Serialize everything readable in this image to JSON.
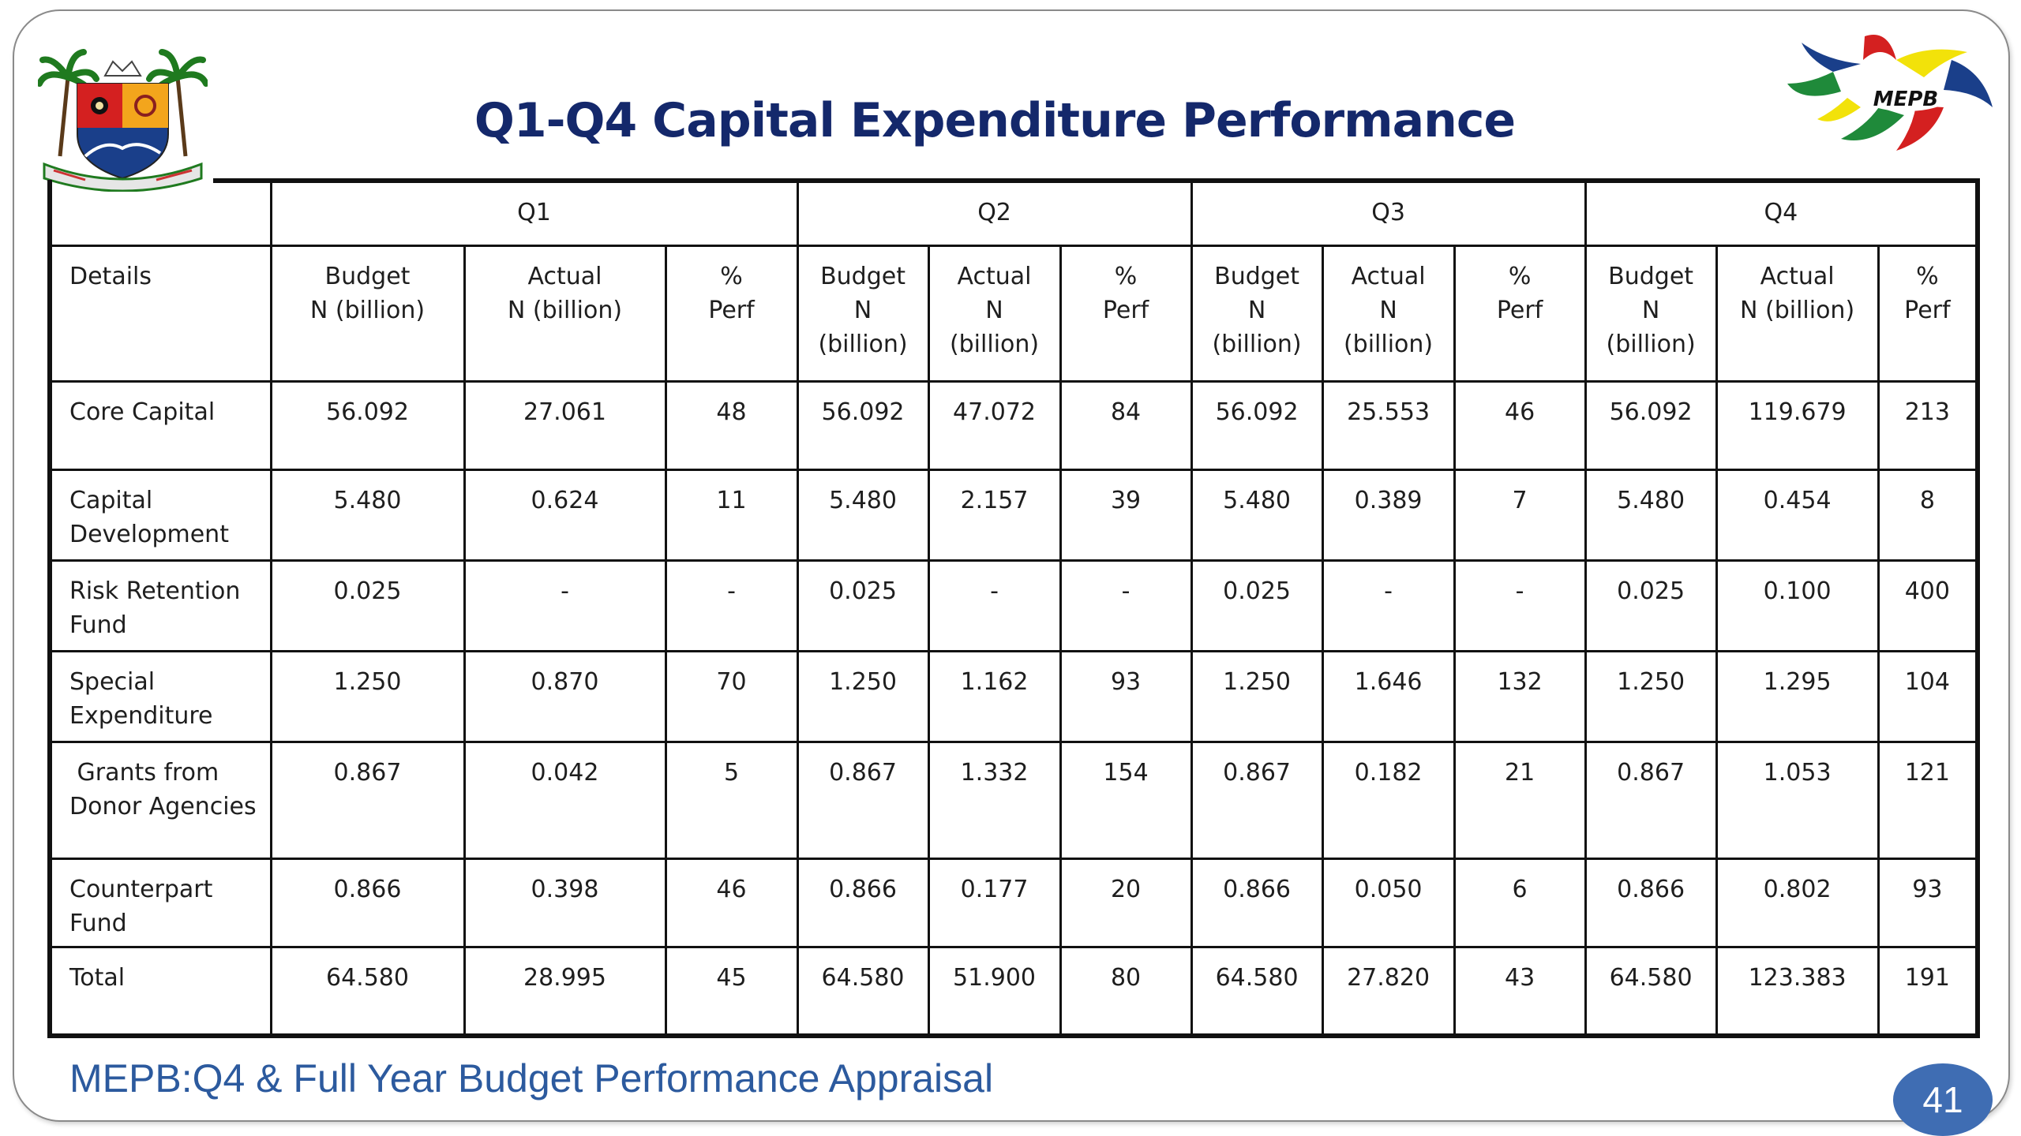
{
  "slide": {
    "title": "Q1-Q4 Capital Expenditure Performance",
    "footer": "MEPB:Q4 & Full Year  Budget Performance Appraisal",
    "page_number": "41",
    "logo_text": "MEPB",
    "accent_color": "#14286b",
    "footer_color": "#2c5a9e"
  },
  "table": {
    "quarters": [
      "Q1",
      "Q2",
      "Q3",
      "Q4"
    ],
    "details_label": "Details",
    "sub_headers": [
      [
        "Budget",
        "N (billion)"
      ],
      [
        "Actual",
        "N (billion)"
      ],
      [
        "%",
        "Perf"
      ],
      [
        "Budget",
        "N",
        "(billion)"
      ],
      [
        "Actual",
        "N",
        "(billion)"
      ],
      [
        "%",
        "Perf"
      ],
      [
        "Budget",
        "N",
        "(billion)"
      ],
      [
        "Actual",
        "N",
        "(billion)"
      ],
      [
        "%",
        "Perf"
      ],
      [
        "Budget",
        "N",
        "(billion)"
      ],
      [
        "Actual",
        "N (billion)"
      ],
      [
        "%",
        "Perf"
      ]
    ],
    "rows": [
      {
        "label": [
          "Core Capital"
        ],
        "values": [
          "56.092",
          "27.061",
          "48",
          "56.092",
          "47.072",
          "84",
          "56.092",
          "25.553",
          "46",
          "56.092",
          "119.679",
          "213"
        ]
      },
      {
        "label": [
          "Capital",
          "Development"
        ],
        "values": [
          "5.480",
          "0.624",
          "11",
          "5.480",
          "2.157",
          "39",
          "5.480",
          "0.389",
          "7",
          "5.480",
          "0.454",
          "8"
        ]
      },
      {
        "label": [
          "Risk Retention",
          "Fund"
        ],
        "values": [
          "0.025",
          "-",
          "-",
          "0.025",
          "-",
          "-",
          "0.025",
          "-",
          "-",
          "0.025",
          "0.100",
          "400"
        ]
      },
      {
        "label": [
          "Special",
          "Expenditure"
        ],
        "values": [
          "1.250",
          "0.870",
          "70",
          "1.250",
          "1.162",
          "93",
          "1.250",
          "1.646",
          "132",
          "1.250",
          "1.295",
          "104"
        ]
      },
      {
        "label": [
          " Grants from",
          "Donor Agencies"
        ],
        "values": [
          "0.867",
          "0.042",
          "5",
          "0.867",
          "1.332",
          "154",
          "0.867",
          "0.182",
          "21",
          "0.867",
          "1.053",
          "121"
        ]
      },
      {
        "label": [
          "Counterpart",
          "Fund"
        ],
        "values": [
          "0.866",
          "0.398",
          "46",
          "0.866",
          "0.177",
          "20",
          "0.866",
          "0.050",
          "6",
          "0.866",
          "0.802",
          "93"
        ]
      },
      {
        "label": [
          "Total"
        ],
        "values": [
          "64.580",
          "28.995",
          "45",
          "64.580",
          "51.900",
          "80",
          "64.580",
          "27.820",
          "43",
          "64.580",
          "123.383",
          "191"
        ]
      }
    ]
  }
}
